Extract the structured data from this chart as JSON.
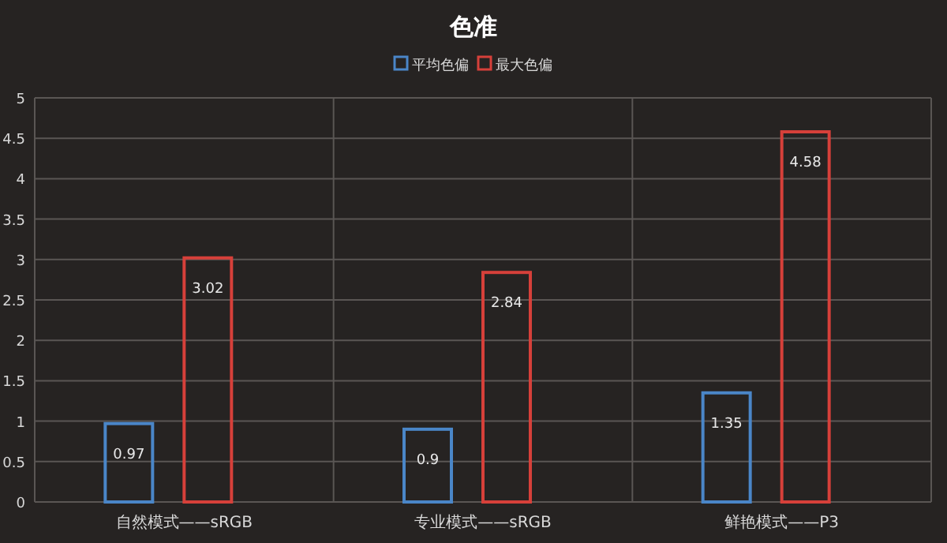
{
  "chart_data": {
    "type": "bar",
    "title": "色准",
    "categories": [
      "自然模式——sRGB",
      "专业模式——sRGB",
      "鲜艳模式——P3"
    ],
    "series": [
      {
        "name": "平均色偏",
        "color": "#4a86c8",
        "values": [
          0.97,
          0.9,
          1.35
        ]
      },
      {
        "name": "最大色偏",
        "color": "#d6403a",
        "values": [
          3.02,
          2.84,
          4.58
        ]
      }
    ],
    "ylim": [
      0,
      5
    ],
    "yticks": [
      0,
      0.5,
      1,
      1.5,
      2,
      2.5,
      3,
      3.5,
      4,
      4.5,
      5
    ],
    "grid": true,
    "legend": "top",
    "data_labels": true
  }
}
